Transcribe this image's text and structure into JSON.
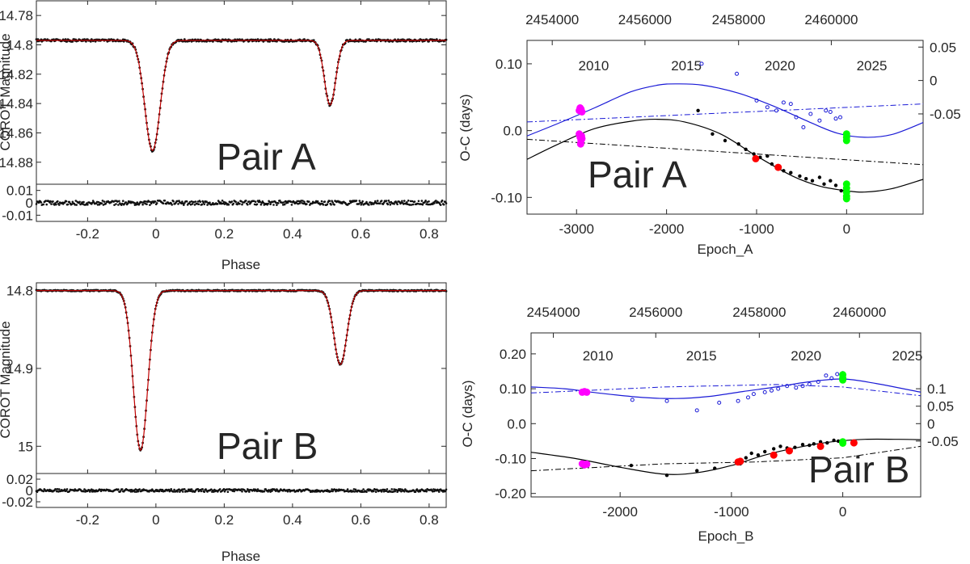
{
  "chart_data": [
    {
      "id": "lc_a",
      "type": "scatter",
      "ylabel": "COROT Magnitude",
      "xlabel": "Phase",
      "xlim": [
        -0.35,
        0.85
      ],
      "ylim": [
        14.77,
        14.895
      ],
      "y_reversed": true,
      "xticks": [
        "-0.2",
        "0",
        "0.2",
        "0.4",
        "0.6",
        "0.8"
      ],
      "xtick_values": [
        -0.2,
        0,
        0.2,
        0.4,
        0.6,
        0.8
      ],
      "yticks": [
        "14.78",
        "14.8",
        "14.82",
        "14.84",
        "14.86",
        "14.88"
      ],
      "ytick_values": [
        14.78,
        14.8,
        14.82,
        14.84,
        14.86,
        14.88
      ],
      "baseline": 14.797,
      "primary_eclipse": {
        "phase": -0.01,
        "depth_mag": 14.872,
        "width": 0.045
      },
      "secondary_eclipse": {
        "phase": 0.51,
        "depth_mag": 14.841,
        "width": 0.033
      },
      "label": "Pair A",
      "residuals": {
        "ylim": [
          -0.015,
          0.015
        ],
        "yticks": [
          "0.01",
          "0",
          "-0.01"
        ],
        "ytick_values": [
          0.01,
          0,
          -0.01
        ],
        "scatter": 0.0018
      }
    },
    {
      "id": "lc_b",
      "type": "scatter",
      "ylabel": "COROT Magnitude",
      "xlabel": "Phase",
      "xlim": [
        -0.35,
        0.85
      ],
      "ylim": [
        14.79,
        15.035
      ],
      "y_reversed": true,
      "xticks": [
        "-0.2",
        "0",
        "0.2",
        "0.4",
        "0.6",
        "0.8"
      ],
      "xtick_values": [
        -0.2,
        0,
        0.2,
        0.4,
        0.6,
        0.8
      ],
      "yticks": [
        "14.8",
        "14.9",
        "15"
      ],
      "ytick_values": [
        14.8,
        14.9,
        15
      ],
      "baseline": 14.8,
      "primary_eclipse": {
        "phase": -0.045,
        "depth_mag": 15.005,
        "width": 0.042
      },
      "secondary_eclipse": {
        "phase": 0.54,
        "depth_mag": 14.895,
        "width": 0.038
      },
      "label": "Pair B",
      "residuals": {
        "ylim": [
          -0.03,
          0.03
        ],
        "yticks": [
          "0.02",
          "0",
          "-0.02"
        ],
        "ytick_values": [
          0.02,
          0,
          -0.02
        ],
        "scatter": 0.0025
      }
    },
    {
      "id": "oc_a",
      "type": "scatter",
      "ylabel": "O-C (days)",
      "xlabel": "Epoch_A",
      "label": "Pair A",
      "xlim": [
        -3550,
        850
      ],
      "ylim": [
        -0.125,
        0.135
      ],
      "xticks": [
        "-3000",
        "-2000",
        "-1000",
        "0"
      ],
      "xtick_values": [
        -3000,
        -2000,
        -1000,
        0
      ],
      "yticks": [
        "0.10",
        "0.0",
        "-0.10"
      ],
      "ytick_values": [
        0.1,
        0,
        -0.1
      ],
      "right_yticks": [
        "0.05",
        "0",
        "-0.05"
      ],
      "right_ytick_values": [
        0.05,
        0,
        -0.05
      ],
      "right_offset": 0.075,
      "top_axis_ticks": [
        "2454000",
        "2456000",
        "2458000",
        "2460000"
      ],
      "top_tick_epochs": [
        -3270,
        -2240,
        -1200,
        -170
      ],
      "year_labels": [
        "2010",
        "2015",
        "2020",
        "2025"
      ],
      "year_epochs": [
        -2810,
        -1780,
        -740,
        280
      ],
      "black_fit": [
        [
          -3550,
          -0.043
        ],
        [
          -3200,
          -0.02
        ],
        [
          -2800,
          0.003
        ],
        [
          -2400,
          0.014
        ],
        [
          -2100,
          0.017
        ],
        [
          -1800,
          0.013
        ],
        [
          -1400,
          -0.005
        ],
        [
          -1000,
          -0.038
        ],
        [
          -600,
          -0.068
        ],
        [
          -300,
          -0.083
        ],
        [
          0,
          -0.09
        ],
        [
          200,
          -0.092
        ],
        [
          500,
          -0.087
        ],
        [
          850,
          -0.073
        ]
      ],
      "black_linear": [
        [
          -3550,
          -0.013
        ],
        [
          850,
          -0.051
        ]
      ],
      "blue_fit": [
        [
          -3550,
          -0.008
        ],
        [
          -3200,
          0.011
        ],
        [
          -2800,
          0.034
        ],
        [
          -2400,
          0.058
        ],
        [
          -2100,
          0.068
        ],
        [
          -1900,
          0.07
        ],
        [
          -1600,
          0.068
        ],
        [
          -1200,
          0.056
        ],
        [
          -800,
          0.036
        ],
        [
          -400,
          0.012
        ],
        [
          -100,
          -0.004
        ],
        [
          200,
          -0.01
        ],
        [
          500,
          -0.006
        ],
        [
          850,
          0.012
        ]
      ],
      "blue_linear": [
        [
          -3550,
          0.013
        ],
        [
          850,
          0.04
        ]
      ],
      "series": [
        {
          "name": "black_dots",
          "color": "#000000",
          "points": [
            [
              -1650,
              0.03
            ],
            [
              -1490,
              -0.005
            ],
            [
              -1350,
              -0.015
            ],
            [
              -1200,
              -0.02
            ],
            [
              -1120,
              -0.028
            ],
            [
              -1030,
              -0.035
            ],
            [
              -960,
              -0.04
            ],
            [
              -880,
              -0.038
            ],
            [
              -830,
              -0.05
            ],
            [
              -760,
              -0.055
            ],
            [
              -700,
              -0.06
            ],
            [
              -620,
              -0.063
            ],
            [
              -520,
              -0.068
            ],
            [
              -450,
              -0.072
            ],
            [
              -380,
              -0.075
            ],
            [
              -300,
              -0.07
            ],
            [
              -250,
              -0.08
            ],
            [
              -180,
              -0.075
            ],
            [
              -120,
              -0.082
            ],
            [
              -60,
              -0.09
            ]
          ]
        },
        {
          "name": "blue_open",
          "color": "#1a1ad6",
          "points": [
            [
              -1610,
              0.1
            ],
            [
              -1220,
              0.085
            ],
            [
              -1000,
              0.045
            ],
            [
              -880,
              0.035
            ],
            [
              -780,
              0.03
            ],
            [
              -700,
              0.042
            ],
            [
              -620,
              0.04
            ],
            [
              -560,
              0.02
            ],
            [
              -480,
              0.005
            ],
            [
              -400,
              0.025
            ],
            [
              -300,
              0.015
            ],
            [
              -230,
              0.03
            ],
            [
              -180,
              0.028
            ],
            [
              -120,
              0.018
            ],
            [
              -70,
              0.02
            ]
          ]
        },
        {
          "name": "red",
          "color": "#ff0000",
          "points": [
            [
              -1010,
              -0.042
            ],
            [
              -760,
              -0.055
            ]
          ]
        },
        {
          "name": "magenta",
          "color": "#ff00ff",
          "points": [
            [
              -2970,
              0.03
            ],
            [
              -2960,
              0.034
            ],
            [
              -2950,
              0.032
            ],
            [
              -2940,
              0.028
            ],
            [
              -2970,
              -0.005
            ],
            [
              -2960,
              -0.01
            ],
            [
              -2950,
              -0.015
            ],
            [
              -2940,
              -0.012
            ],
            [
              -2955,
              -0.02
            ],
            [
              -2945,
              -0.008
            ]
          ]
        },
        {
          "name": "green",
          "color": "#00ff00",
          "points": [
            [
              0,
              -0.005
            ],
            [
              0,
              -0.01
            ],
            [
              0,
              -0.015
            ],
            [
              0,
              -0.08
            ],
            [
              0,
              -0.086
            ],
            [
              0,
              -0.092
            ],
            [
              0,
              -0.098
            ],
            [
              0,
              -0.102
            ]
          ]
        }
      ]
    },
    {
      "id": "oc_b",
      "type": "scatter",
      "ylabel": "O-C (days)",
      "xlabel": "Epoch_B",
      "label": "Pair B",
      "xlim": [
        -2800,
        700
      ],
      "ylim": [
        -0.21,
        0.26
      ],
      "xticks": [
        "-2000",
        "-1000",
        "0"
      ],
      "xtick_values": [
        -2000,
        -1000,
        0
      ],
      "yticks": [
        "0.20",
        "0.10",
        "0.0",
        "-0.10",
        "-0.20"
      ],
      "ytick_values": [
        0.2,
        0.1,
        0,
        -0.1,
        -0.2
      ],
      "right_yticks": [
        "0.1",
        "0.05",
        "0",
        "-0.05"
      ],
      "right_ytick_values": [
        0.1,
        0.05,
        0,
        -0.05
      ],
      "right_offset": 0.0,
      "top_axis_ticks": [
        "2454000",
        "2456000",
        "2458000",
        "2460000"
      ],
      "top_tick_epochs": [
        -2600,
        -1680,
        -750,
        150
      ],
      "year_labels": [
        "2010",
        "2015",
        "2020",
        "2025"
      ],
      "year_epochs": [
        -2200,
        -1270,
        -330,
        580
      ],
      "black_fit": [
        [
          -2800,
          -0.082
        ],
        [
          -2400,
          -0.1
        ],
        [
          -2000,
          -0.125
        ],
        [
          -1600,
          -0.145
        ],
        [
          -1300,
          -0.14
        ],
        [
          -1000,
          -0.12
        ],
        [
          -700,
          -0.09
        ],
        [
          -400,
          -0.068
        ],
        [
          -100,
          -0.052
        ],
        [
          200,
          -0.045
        ],
        [
          500,
          -0.045
        ],
        [
          700,
          -0.046
        ]
      ],
      "black_linear": [
        [
          -2800,
          -0.135
        ],
        [
          -1600,
          -0.115
        ],
        [
          -800,
          -0.11
        ],
        [
          0,
          -0.098
        ],
        [
          700,
          -0.065
        ]
      ],
      "blue_fit": [
        [
          -2800,
          0.105
        ],
        [
          -2500,
          0.1
        ],
        [
          -2200,
          0.088
        ],
        [
          -1800,
          0.075
        ],
        [
          -1500,
          0.072
        ],
        [
          -1200,
          0.078
        ],
        [
          -900,
          0.092
        ],
        [
          -600,
          0.105
        ],
        [
          -300,
          0.12
        ],
        [
          0,
          0.128
        ],
        [
          300,
          0.115
        ],
        [
          700,
          0.09
        ]
      ],
      "blue_linear": [
        [
          -2800,
          0.088
        ],
        [
          -1600,
          0.105
        ],
        [
          -600,
          0.112
        ],
        [
          0,
          0.105
        ],
        [
          700,
          0.08
        ]
      ],
      "series": [
        {
          "name": "black_dots",
          "color": "#000000",
          "points": [
            [
              -1900,
              -0.12
            ],
            [
              -1580,
              -0.148
            ],
            [
              -1310,
              -0.135
            ],
            [
              -1150,
              -0.128
            ],
            [
              -920,
              -0.115
            ],
            [
              -870,
              -0.098
            ],
            [
              -820,
              -0.085
            ],
            [
              -760,
              -0.09
            ],
            [
              -700,
              -0.08
            ],
            [
              -620,
              -0.072
            ],
            [
              -560,
              -0.065
            ],
            [
              -500,
              -0.07
            ],
            [
              -430,
              -0.068
            ],
            [
              -360,
              -0.06
            ],
            [
              -300,
              -0.062
            ],
            [
              -260,
              -0.058
            ],
            [
              -200,
              -0.052
            ],
            [
              -140,
              -0.055
            ],
            [
              -80,
              -0.048
            ],
            [
              -40,
              -0.05
            ]
          ]
        },
        {
          "name": "blue_open",
          "color": "#1a1ad6",
          "points": [
            [
              -1890,
              0.068
            ],
            [
              -1580,
              0.065
            ],
            [
              -1310,
              0.038
            ],
            [
              -1110,
              0.06
            ],
            [
              -940,
              0.065
            ],
            [
              -850,
              0.075
            ],
            [
              -800,
              0.085
            ],
            [
              -700,
              0.09
            ],
            [
              -640,
              0.095
            ],
            [
              -580,
              0.1
            ],
            [
              -500,
              0.108
            ],
            [
              -420,
              0.103
            ],
            [
              -360,
              0.108
            ],
            [
              -300,
              0.113
            ],
            [
              -220,
              0.12
            ],
            [
              -150,
              0.138
            ],
            [
              -100,
              0.13
            ],
            [
              -50,
              0.142
            ],
            [
              0,
              0.145
            ]
          ]
        },
        {
          "name": "red",
          "color": "#ff0000",
          "points": [
            [
              -940,
              -0.11
            ],
            [
              -920,
              -0.108
            ],
            [
              -620,
              -0.09
            ],
            [
              -480,
              -0.078
            ],
            [
              -200,
              -0.065
            ],
            [
              100,
              -0.055
            ]
          ]
        },
        {
          "name": "magenta",
          "color": "#ff00ff",
          "points": [
            [
              -2340,
              0.09
            ],
            [
              -2320,
              0.092
            ],
            [
              -2300,
              0.09
            ],
            [
              -2340,
              -0.115
            ],
            [
              -2320,
              -0.118
            ],
            [
              -2300,
              -0.116
            ]
          ]
        },
        {
          "name": "green",
          "color": "#00ff00",
          "points": [
            [
              0,
              0.125
            ],
            [
              0,
              0.13
            ],
            [
              0,
              0.14
            ],
            [
              0,
              -0.052
            ],
            [
              0,
              -0.056
            ]
          ]
        }
      ]
    }
  ]
}
